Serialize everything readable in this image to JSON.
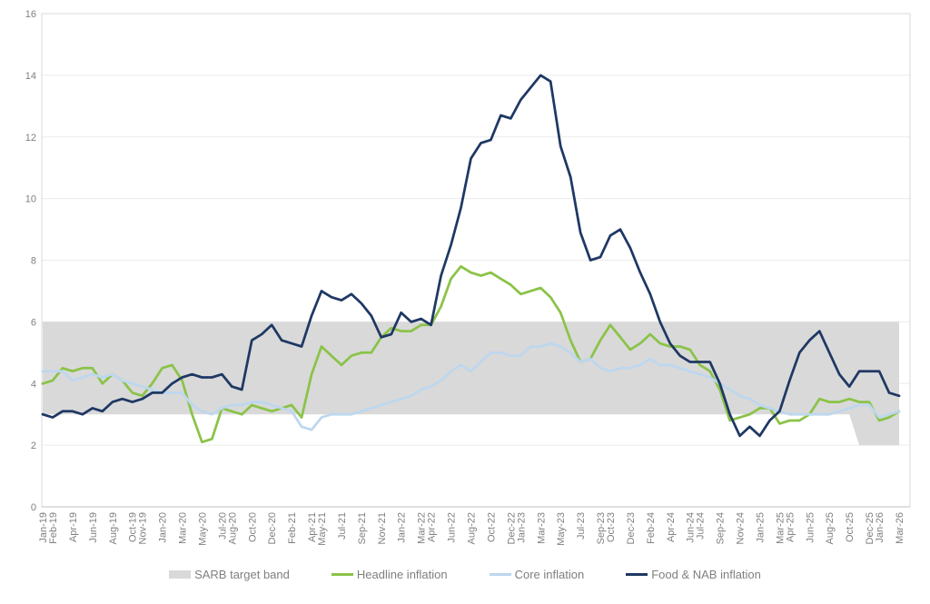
{
  "colors": {
    "background": "#ffffff",
    "band": "#d9d9d9",
    "headline": "#8bc348",
    "core": "#bdd7ee",
    "food_nab": "#1f3864",
    "gridline": "#ebebeb",
    "plot_border": "#d9d9d9",
    "axis_line": "#bfbfbf",
    "tick_text": "#7f7f7f",
    "legend_text": "#7f7f7f"
  },
  "legend": {
    "items": [
      {
        "label": "SARB target band",
        "swatch": "band",
        "color": "#d9d9d9"
      },
      {
        "label": "Headline inflation",
        "swatch": "line",
        "color": "#8bc348"
      },
      {
        "label": "Core inflation",
        "swatch": "line",
        "color": "#bdd7ee"
      },
      {
        "label": "Food & NAB inflation",
        "swatch": "line",
        "color": "#1f3864"
      }
    ]
  },
  "chart_data": {
    "type": "line",
    "title": "",
    "xlabel": "",
    "ylabel": "",
    "ylim": [
      0,
      16
    ],
    "y_ticks": [
      0,
      2,
      4,
      6,
      8,
      10,
      12,
      14,
      16
    ],
    "grid": true,
    "legend_position": "bottom",
    "x_label_rotation": -90,
    "x": [
      "Jan-19",
      "Feb-19",
      "Mar-19",
      "Apr-19",
      "May-19",
      "Jun-19",
      "Jul-19",
      "Aug-19",
      "Sep-19",
      "Oct-19",
      "Nov-19",
      "Dec-19",
      "Jan-20",
      "Feb-20",
      "Mar-20",
      "Apr-20",
      "May-20",
      "Jun-20",
      "Jul-20",
      "Aug-20",
      "Sep-20",
      "Oct-20",
      "Nov-20",
      "Dec-20",
      "Jan-21",
      "Feb-21",
      "Mar-21",
      "Apr-21",
      "May-21",
      "Jun-21",
      "Jul-21",
      "Aug-21",
      "Sep-21",
      "Oct-21",
      "Nov-21",
      "Dec-21",
      "Jan-22",
      "Feb-22",
      "Mar-22",
      "Apr-22",
      "May-22",
      "Jun-22",
      "Jul-22",
      "Aug-22",
      "Sep-22",
      "Oct-22",
      "Nov-22",
      "Dec-22",
      "Jan-23",
      "Feb-23",
      "Mar-23",
      "Apr-23",
      "May-23",
      "Jun-23",
      "Jul-23",
      "Aug-23",
      "Sep-23",
      "Oct-23",
      "Nov-23",
      "Dec-23",
      "Jan-24",
      "Feb-24",
      "Mar-24",
      "Apr-24",
      "May-24",
      "Jun-24",
      "Jul-24",
      "Aug-24",
      "Sep-24",
      "Oct-24",
      "Nov-24",
      "Dec-24",
      "Jan-25",
      "Feb-25",
      "Mar-25",
      "Apr-25",
      "May-25",
      "Jun-25",
      "Jul-25",
      "Aug-25",
      "Sep-25",
      "Oct-25",
      "Nov-25",
      "Dec-25",
      "Jan-26",
      "Feb-26",
      "Mar-26"
    ],
    "x_tick_indices": [
      0,
      1,
      3,
      5,
      7,
      9,
      10,
      12,
      14,
      16,
      18,
      19,
      21,
      23,
      25,
      27,
      28,
      30,
      32,
      34,
      36,
      38,
      39,
      41,
      43,
      45,
      47,
      48,
      50,
      52,
      54,
      56,
      57,
      59,
      61,
      63,
      65,
      66,
      68,
      70,
      72,
      74,
      75,
      77,
      79,
      81,
      83,
      84,
      86
    ],
    "band": {
      "name": "SARB target band",
      "upper": 6,
      "lower_segments": [
        {
          "from": "Jan-19",
          "to": "Oct-25",
          "value": 3
        },
        {
          "from": "Nov-25",
          "to": "Mar-26",
          "value": 2
        }
      ]
    },
    "series": [
      {
        "name": "Headline inflation",
        "color": "#8bc348",
        "values": [
          4.0,
          4.1,
          4.5,
          4.4,
          4.5,
          4.5,
          4.0,
          4.3,
          4.1,
          3.7,
          3.6,
          4.0,
          4.5,
          4.6,
          4.1,
          3.0,
          2.1,
          2.2,
          3.2,
          3.1,
          3.0,
          3.3,
          3.2,
          3.1,
          3.2,
          3.3,
          2.9,
          4.3,
          5.2,
          4.9,
          4.6,
          4.9,
          5.0,
          5.0,
          5.5,
          5.8,
          5.7,
          5.7,
          5.9,
          5.9,
          6.5,
          7.4,
          7.8,
          7.6,
          7.5,
          7.6,
          7.4,
          7.2,
          6.9,
          7.0,
          7.1,
          6.8,
          6.3,
          5.4,
          4.7,
          4.8,
          5.4,
          5.9,
          5.5,
          5.1,
          5.3,
          5.6,
          5.3,
          5.2,
          5.2,
          5.1,
          4.6,
          4.4,
          3.8,
          2.8,
          2.9,
          3.0,
          3.2,
          3.2,
          2.7,
          2.8,
          2.8,
          3.0,
          3.5,
          3.4,
          3.4,
          3.5,
          3.4,
          3.4,
          2.8,
          2.9,
          3.1
        ]
      },
      {
        "name": "Core inflation",
        "color": "#bdd7ee",
        "values": [
          4.4,
          4.4,
          4.4,
          4.1,
          4.2,
          4.3,
          4.2,
          4.3,
          4.1,
          4.0,
          3.9,
          3.8,
          3.7,
          3.7,
          3.7,
          3.3,
          3.1,
          3.0,
          3.2,
          3.3,
          3.3,
          3.4,
          3.4,
          3.3,
          3.2,
          3.1,
          2.6,
          2.5,
          2.9,
          3.0,
          3.0,
          3.0,
          3.1,
          3.2,
          3.3,
          3.4,
          3.5,
          3.6,
          3.8,
          3.9,
          4.1,
          4.4,
          4.6,
          4.4,
          4.7,
          5.0,
          5.0,
          4.9,
          4.9,
          5.2,
          5.2,
          5.3,
          5.2,
          5.0,
          4.7,
          4.8,
          4.5,
          4.4,
          4.5,
          4.5,
          4.6,
          4.8,
          4.6,
          4.6,
          4.5,
          4.4,
          4.3,
          4.2,
          4.0,
          3.8,
          3.6,
          3.5,
          3.3,
          3.2,
          3.1,
          3.0,
          3.0,
          3.0,
          3.0,
          3.0,
          3.1,
          3.2,
          3.3,
          3.3,
          2.9,
          3.0,
          3.1
        ]
      },
      {
        "name": "Food & NAB inflation",
        "color": "#1f3864",
        "values": [
          3.0,
          2.9,
          3.1,
          3.1,
          3.0,
          3.2,
          3.1,
          3.4,
          3.5,
          3.4,
          3.5,
          3.7,
          3.7,
          4.0,
          4.2,
          4.3,
          4.2,
          4.2,
          4.3,
          3.9,
          3.8,
          5.4,
          5.6,
          5.9,
          5.4,
          5.3,
          5.2,
          6.2,
          7.0,
          6.8,
          6.7,
          6.9,
          6.6,
          6.2,
          5.5,
          5.6,
          6.3,
          6.0,
          6.1,
          5.9,
          7.5,
          8.5,
          9.7,
          11.3,
          11.8,
          11.9,
          12.7,
          12.6,
          13.2,
          13.6,
          14.0,
          13.8,
          11.7,
          10.7,
          8.9,
          8.0,
          8.1,
          8.8,
          9.0,
          8.4,
          7.6,
          6.9,
          6.0,
          5.3,
          4.9,
          4.7,
          4.7,
          4.7,
          4.0,
          3.0,
          2.3,
          2.6,
          2.3,
          2.8,
          3.1,
          4.1,
          5.0,
          5.4,
          5.7,
          5.0,
          4.3,
          3.9,
          4.4,
          4.4,
          4.4,
          3.7,
          3.6
        ]
      }
    ]
  }
}
